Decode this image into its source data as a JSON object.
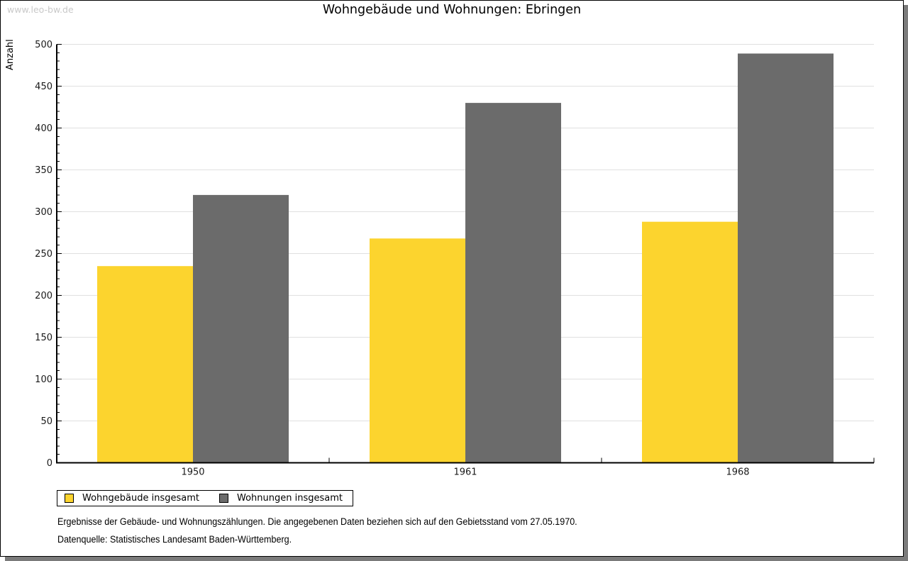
{
  "page": {
    "watermark": "www.leo-bw.de",
    "title": "Wohngebäude und Wohnungen: Ebringen"
  },
  "chart_data": {
    "type": "bar",
    "title": "Wohngebäude und Wohnungen: Ebringen",
    "ylabel": "Anzahl",
    "xlabel": "",
    "categories": [
      "1950",
      "1961",
      "1968"
    ],
    "series": [
      {
        "name": "Wohngebäude insgesamt",
        "color": "#FCD42E",
        "values": [
          235,
          268,
          288
        ]
      },
      {
        "name": "Wohnungen insgesamt",
        "color": "#6B6B6B",
        "values": [
          320,
          430,
          489
        ]
      }
    ],
    "ylim": [
      0,
      500
    ],
    "ytick_step": 50,
    "minor_tick_step": 10,
    "grid": true,
    "gridline_color": "#E0E0E0",
    "legend_position": "bottom-left"
  },
  "footer": {
    "line1": "Ergebnisse der Gebäude- und Wohnungszählungen. Die angegebenen Daten beziehen sich auf den Gebietsstand vom 27.05.1970.",
    "line2": "Datenquelle: Statistisches Landesamt Baden-Württemberg."
  },
  "colors": {
    "axis": "#000000",
    "tick_label": "#1a1a1a",
    "watermark": "#C9C9C9",
    "shadow": "#7B7B7B",
    "background": "#FFFFFF"
  }
}
